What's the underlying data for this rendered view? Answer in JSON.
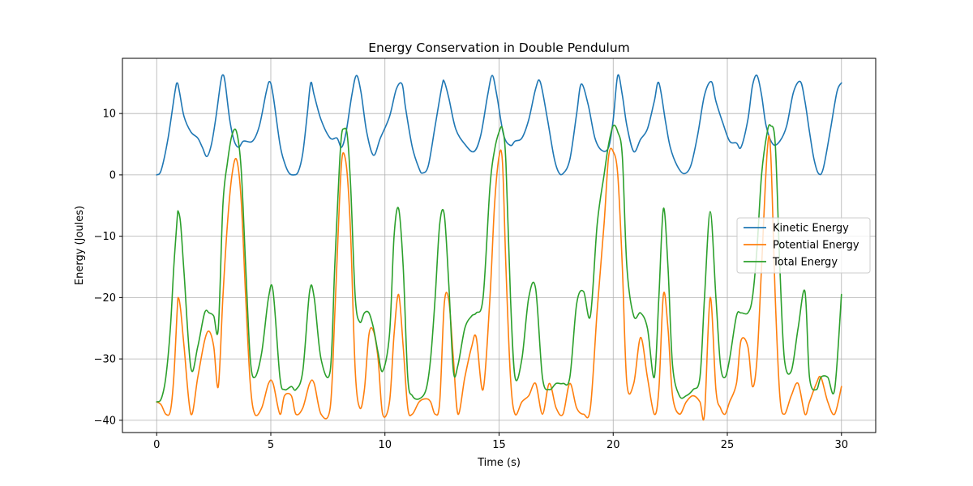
{
  "chart_data": {
    "type": "line",
    "title": "Energy Conservation in Double Pendulum",
    "xlabel": "Time (s)",
    "ylabel": "Energy (Joules)",
    "xlim": [
      -1.5,
      31.5
    ],
    "ylim": [
      -42,
      19
    ],
    "xticks": [
      0,
      5,
      10,
      15,
      20,
      25,
      30
    ],
    "yticks": [
      -40,
      -30,
      -20,
      -10,
      0,
      10
    ],
    "grid": true,
    "legend_position": "center-right",
    "series": [
      {
        "name": "Kinetic Energy",
        "color": "#1f77b4",
        "x": [
          0,
          0.2,
          0.5,
          0.8,
          0.9,
          1.0,
          1.2,
          1.5,
          1.8,
          2.0,
          2.2,
          2.4,
          2.6,
          2.8,
          2.9,
          3.0,
          3.2,
          3.4,
          3.6,
          3.8,
          4.2,
          4.5,
          4.8,
          4.95,
          5.1,
          5.4,
          5.6,
          5.8,
          6.0,
          6.2,
          6.4,
          6.6,
          6.75,
          6.9,
          7.2,
          7.6,
          7.9,
          8.1,
          8.3,
          8.55,
          8.75,
          8.95,
          9.2,
          9.5,
          9.8,
          10.2,
          10.5,
          10.75,
          10.9,
          11.2,
          11.5,
          11.65,
          11.9,
          12.2,
          12.5,
          12.6,
          12.8,
          13.1,
          13.5,
          13.9,
          14.2,
          14.5,
          14.7,
          14.9,
          15.2,
          15.5,
          15.7,
          16.0,
          16.3,
          16.6,
          16.8,
          17.1,
          17.4,
          17.6,
          17.8,
          18.1,
          18.4,
          18.6,
          18.9,
          19.2,
          19.5,
          19.8,
          20.0,
          20.2,
          20.4,
          20.6,
          20.9,
          21.2,
          21.5,
          21.8,
          22.0,
          22.3,
          22.5,
          22.8,
          23.1,
          23.4,
          23.7,
          24.0,
          24.3,
          24.5,
          24.8,
          25.1,
          25.4,
          25.6,
          25.9,
          26.1,
          26.3,
          26.5,
          26.7,
          27.0,
          27.3,
          27.6,
          27.9,
          28.2,
          28.4,
          28.6,
          28.8,
          29.0,
          29.2,
          29.5,
          29.8,
          30.0
        ],
        "y": [
          0,
          0.8,
          6.0,
          13.5,
          15.0,
          13.5,
          9.5,
          7.0,
          6.0,
          4.5,
          3.0,
          5.0,
          9.5,
          15.0,
          16.3,
          15.0,
          9.0,
          5.5,
          4.5,
          5.5,
          5.5,
          8.0,
          13.5,
          15.2,
          13.0,
          5.0,
          2.0,
          0.3,
          0,
          0.5,
          3.5,
          10.0,
          15.0,
          13.0,
          9.0,
          6.0,
          6.0,
          4.5,
          7.0,
          13.0,
          16.2,
          13.5,
          7.0,
          3.2,
          6.0,
          9.5,
          14.0,
          14.8,
          11.0,
          4.5,
          1.0,
          0.3,
          1.5,
          8.0,
          14.5,
          15.2,
          12.5,
          7.5,
          5.0,
          3.8,
          6.5,
          13.0,
          16.2,
          13.0,
          6.5,
          4.8,
          5.5,
          6.0,
          9.0,
          14.0,
          15.2,
          9.5,
          3.0,
          0.5,
          0.2,
          2.5,
          10.0,
          14.8,
          11.5,
          6.0,
          4.0,
          4.5,
          9.0,
          16.2,
          13.0,
          8.0,
          3.8,
          5.8,
          7.5,
          12.0,
          15.0,
          8.5,
          4.5,
          1.5,
          0.2,
          1.5,
          6.5,
          13.0,
          15.2,
          12.0,
          8.5,
          5.5,
          5.2,
          4.5,
          9.0,
          14.5,
          16.2,
          13.0,
          8.0,
          5.0,
          5.5,
          8.0,
          13.5,
          15.2,
          12.0,
          7.0,
          2.5,
          0.2,
          1.0,
          7.0,
          13.5,
          15.0
        ]
      },
      {
        "name": "Potential Energy",
        "color": "#ff7f0e",
        "x": [
          0,
          0.2,
          0.4,
          0.6,
          0.75,
          0.9,
          0.95,
          1.05,
          1.2,
          1.5,
          1.8,
          2.1,
          2.3,
          2.5,
          2.7,
          2.9,
          3.1,
          3.3,
          3.5,
          3.7,
          3.9,
          4.1,
          4.3,
          4.6,
          4.9,
          5.1,
          5.4,
          5.6,
          5.9,
          6.1,
          6.4,
          6.7,
          6.9,
          7.2,
          7.6,
          7.8,
          8.0,
          8.1,
          8.2,
          8.35,
          8.5,
          8.7,
          8.9,
          9.1,
          9.3,
          9.5,
          9.7,
          9.9,
          10.2,
          10.4,
          10.6,
          10.8,
          11.0,
          11.2,
          11.5,
          11.8,
          12.0,
          12.2,
          12.4,
          12.6,
          12.8,
          13.0,
          13.2,
          13.5,
          13.8,
          14.0,
          14.3,
          14.6,
          14.8,
          15.0,
          15.15,
          15.3,
          15.5,
          15.7,
          16.0,
          16.3,
          16.6,
          16.9,
          17.2,
          17.5,
          17.8,
          18.1,
          18.4,
          18.7,
          19.0,
          19.3,
          19.6,
          19.8,
          20.0,
          20.2,
          20.4,
          20.6,
          20.9,
          21.2,
          21.5,
          21.8,
          22.0,
          22.2,
          22.4,
          22.6,
          22.9,
          23.2,
          23.5,
          23.8,
          24.0,
          24.25,
          24.5,
          24.7,
          24.9,
          25.1,
          25.4,
          25.6,
          25.9,
          26.1,
          26.3,
          26.5,
          26.75,
          26.9,
          27.1,
          27.3,
          27.5,
          27.8,
          28.1,
          28.4,
          28.6,
          28.9,
          29.1,
          29.4,
          29.7,
          30.0
        ],
        "y": [
          -37,
          -37.5,
          -39,
          -38.5,
          -33,
          -22,
          -20,
          -22,
          -28,
          -39,
          -33,
          -27,
          -25.5,
          -28,
          -34.5,
          -20,
          -8,
          0,
          2.5,
          -4,
          -20,
          -34,
          -39,
          -38,
          -34,
          -34,
          -39,
          -36,
          -36,
          -39,
          -38,
          -34,
          -34,
          -39,
          -38,
          -23,
          -5,
          2,
          3.5,
          0,
          -10,
          -32,
          -38,
          -35,
          -26,
          -25.5,
          -30,
          -39,
          -37,
          -26,
          -19.5,
          -28,
          -38,
          -39,
          -37,
          -36.5,
          -37,
          -39,
          -37,
          -21,
          -20.5,
          -30,
          -39,
          -33,
          -28,
          -26.5,
          -35,
          -20,
          -5,
          3,
          2,
          -15,
          -33,
          -39,
          -37,
          -36,
          -34,
          -39,
          -34,
          -38,
          -39,
          -34,
          -38,
          -39,
          -38,
          -22,
          -8,
          3,
          3.8,
          0,
          -15,
          -34,
          -34,
          -26.5,
          -33,
          -39,
          -35,
          -19.5,
          -25,
          -36,
          -39,
          -37,
          -36,
          -37,
          -39,
          -20,
          -35,
          -38,
          -39,
          -37,
          -34,
          -27,
          -28,
          -34.5,
          -30,
          -15,
          4,
          3.5,
          -20,
          -36,
          -39,
          -36,
          -34,
          -39,
          -37,
          -34,
          -33,
          -37,
          -39,
          -34.5
        ]
      },
      {
        "name": "Total Energy",
        "color": "#2ca02c",
        "x": [
          0,
          0.2,
          0.4,
          0.6,
          0.75,
          0.9,
          0.95,
          1.05,
          1.2,
          1.5,
          1.8,
          2.1,
          2.3,
          2.5,
          2.7,
          2.9,
          3.1,
          3.3,
          3.5,
          3.7,
          3.9,
          4.1,
          4.3,
          4.6,
          4.9,
          5.1,
          5.4,
          5.6,
          5.9,
          6.1,
          6.4,
          6.7,
          6.9,
          7.2,
          7.6,
          7.8,
          8.0,
          8.1,
          8.2,
          8.35,
          8.5,
          8.7,
          8.9,
          9.1,
          9.3,
          9.5,
          9.7,
          9.9,
          10.2,
          10.4,
          10.6,
          10.8,
          11.0,
          11.2,
          11.5,
          11.8,
          12.0,
          12.2,
          12.4,
          12.6,
          12.8,
          13.0,
          13.2,
          13.5,
          13.8,
          14.0,
          14.3,
          14.6,
          14.8,
          15.0,
          15.15,
          15.3,
          15.5,
          15.7,
          16.0,
          16.3,
          16.6,
          16.9,
          17.2,
          17.5,
          17.8,
          18.1,
          18.4,
          18.7,
          19.0,
          19.3,
          19.6,
          19.8,
          20.0,
          20.2,
          20.4,
          20.6,
          20.9,
          21.2,
          21.5,
          21.8,
          22.0,
          22.2,
          22.4,
          22.6,
          22.9,
          23.2,
          23.5,
          23.8,
          24.0,
          24.25,
          24.5,
          24.7,
          24.9,
          25.1,
          25.4,
          25.6,
          25.9,
          26.1,
          26.3,
          26.5,
          26.75,
          26.9,
          27.1,
          27.3,
          27.5,
          27.8,
          28.1,
          28.4,
          28.6,
          28.9,
          29.1,
          29.4,
          29.7,
          30.0
        ],
        "y": [
          -37,
          -36.5,
          -33,
          -25,
          -15,
          -7,
          -6,
          -8,
          -16,
          -31.5,
          -28,
          -22.5,
          -22.5,
          -23,
          -25,
          -5,
          2,
          6.5,
          7,
          1,
          -15,
          -30,
          -33,
          -29,
          -20,
          -19,
          -33,
          -35,
          -34.5,
          -35,
          -32,
          -19,
          -20,
          -30,
          -32,
          -15,
          1,
          6.5,
          7.5,
          6.5,
          -2,
          -20,
          -24,
          -22.5,
          -22.5,
          -25,
          -29,
          -32,
          -26,
          -10,
          -5.5,
          -15,
          -33,
          -36,
          -36.5,
          -35,
          -30,
          -20,
          -8,
          -6.5,
          -18,
          -32,
          -31,
          -25,
          -23,
          -22.5,
          -20,
          -2,
          4,
          7,
          7.5,
          2,
          -20,
          -33,
          -30,
          -20,
          -18.5,
          -33,
          -35,
          -34,
          -34,
          -33,
          -21,
          -19,
          -23,
          -8,
          0,
          5,
          8,
          7,
          3,
          -15,
          -23,
          -22.5,
          -25,
          -33,
          -20,
          -5.5,
          -15,
          -31,
          -36,
          -36,
          -35,
          -33,
          -20,
          -6,
          -20,
          -31,
          -33,
          -30,
          -23,
          -22.5,
          -22.5,
          -20,
          -12,
          0,
          7,
          8,
          5,
          -15,
          -30,
          -32,
          -25,
          -19,
          -33,
          -35,
          -33,
          -33,
          -35,
          -19.5
        ]
      }
    ]
  }
}
